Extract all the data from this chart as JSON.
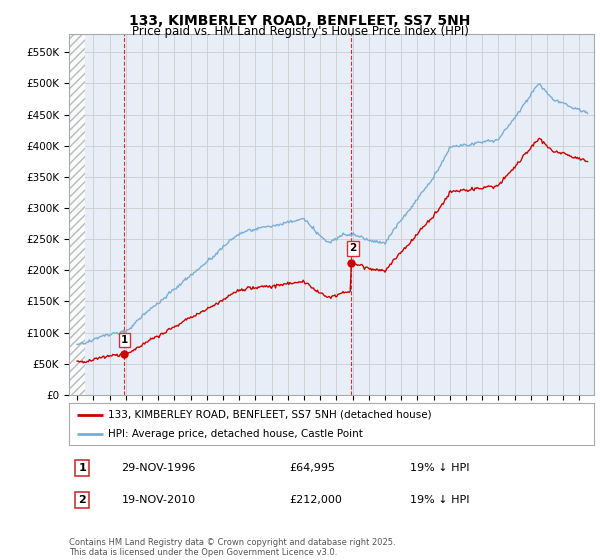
{
  "title": "133, KIMBERLEY ROAD, BENFLEET, SS7 5NH",
  "subtitle": "Price paid vs. HM Land Registry's House Price Index (HPI)",
  "legend_line1": "133, KIMBERLEY ROAD, BENFLEET, SS7 5NH (detached house)",
  "legend_line2": "HPI: Average price, detached house, Castle Point",
  "transaction1_date": "29-NOV-1996",
  "transaction1_price": "£64,995",
  "transaction1_hpi": "19% ↓ HPI",
  "transaction2_date": "19-NOV-2010",
  "transaction2_price": "£212,000",
  "transaction2_hpi": "19% ↓ HPI",
  "footer": "Contains HM Land Registry data © Crown copyright and database right 2025.\nThis data is licensed under the Open Government Licence v3.0.",
  "hpi_color": "#7aadd4",
  "price_color": "#cc0000",
  "ylim": [
    0,
    580000
  ],
  "yticks": [
    0,
    50000,
    100000,
    150000,
    200000,
    250000,
    300000,
    350000,
    400000,
    450000,
    500000,
    550000
  ],
  "background_color": "#ffffff",
  "grid_color": "#cccccc",
  "plot_bg_color": "#e8eef8"
}
